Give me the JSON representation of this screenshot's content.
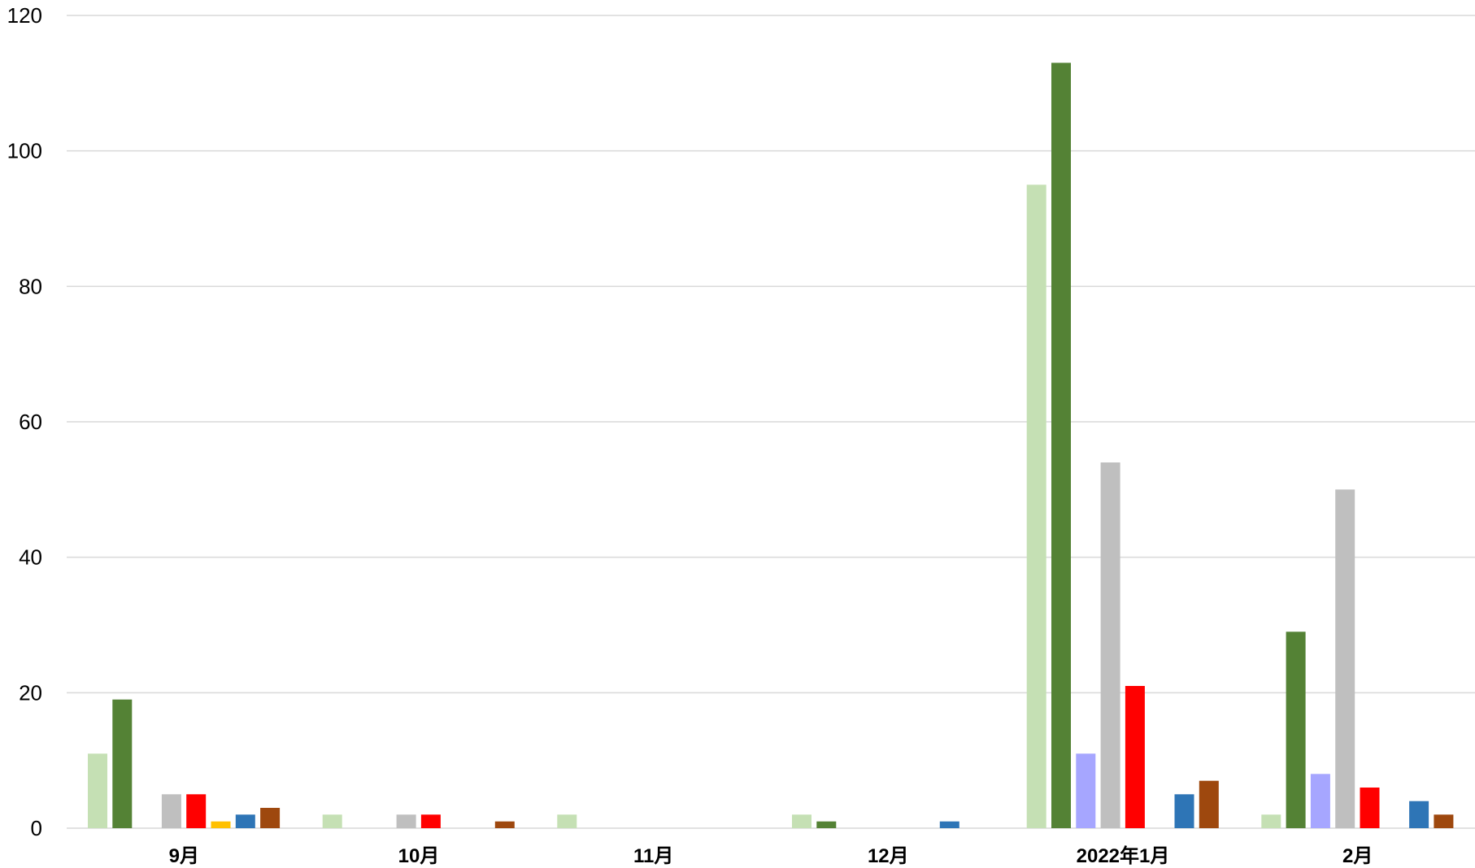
{
  "chart_data": {
    "type": "bar",
    "categories": [
      "9月",
      "10月",
      "11月",
      "12月",
      "2022年1月",
      "2月"
    ],
    "yticks": [
      "0",
      "20",
      "40",
      "60",
      "80",
      "100",
      "120"
    ],
    "ylim": [
      0,
      120
    ],
    "grid": true,
    "legend": "none",
    "series": [
      {
        "color": "#c5e0b4",
        "values": [
          11,
          2,
          2,
          2,
          95,
          2
        ]
      },
      {
        "color": "#548235",
        "values": [
          19,
          0,
          0,
          1,
          113,
          29
        ]
      },
      {
        "color": "#a6a6ff",
        "values": [
          0,
          0,
          0,
          0,
          11,
          8
        ]
      },
      {
        "color": "#bfbfbf",
        "values": [
          5,
          2,
          0,
          0,
          54,
          50
        ]
      },
      {
        "color": "#ff0000",
        "values": [
          5,
          2,
          0,
          0,
          21,
          6
        ]
      },
      {
        "color": "#ffc000",
        "values": [
          1,
          0,
          0,
          0,
          0,
          0
        ]
      },
      {
        "color": "#2e75b6",
        "values": [
          2,
          0,
          0,
          1,
          5,
          4
        ]
      },
      {
        "color": "#9e480e",
        "values": [
          3,
          1,
          0,
          0,
          7,
          2
        ]
      }
    ]
  }
}
